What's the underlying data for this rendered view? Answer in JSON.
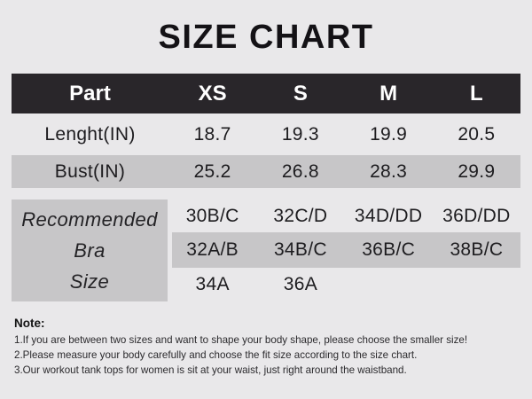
{
  "title": "SIZE CHART",
  "table": {
    "headers": [
      "Part",
      "XS",
      "S",
      "M",
      "L"
    ],
    "rows": [
      {
        "label": "Lenght(IN)",
        "values": [
          "18.7",
          "19.3",
          "19.9",
          "20.5"
        ]
      },
      {
        "label": "Bust(IN)",
        "values": [
          "25.2",
          "26.8",
          "28.3",
          "29.9"
        ]
      }
    ],
    "bra": {
      "label_lines": [
        "Recommended",
        "Bra",
        "Size"
      ],
      "rows": [
        [
          "30B/C",
          "32C/D",
          "34D/DD",
          "36D/DD"
        ],
        [
          "32A/B",
          "34B/C",
          "36B/C",
          "38B/C"
        ],
        [
          "34A",
          "36A",
          "",
          ""
        ]
      ]
    }
  },
  "note": {
    "heading": "Note:",
    "items": [
      "1.If you are between two sizes and want to shape your body shape, please choose the smaller size!",
      "2.Please measure your body carefully and choose the fit size according to the size chart.",
      "3.Our workout tank tops for women is sit at your waist, just right around the waistband."
    ]
  },
  "colors": {
    "page_bg": "#e9e8ea",
    "header_bg": "#29262a",
    "row_gray": "#c7c6c8",
    "header_text": "#ffffff",
    "body_text": "#1d1c1f"
  }
}
